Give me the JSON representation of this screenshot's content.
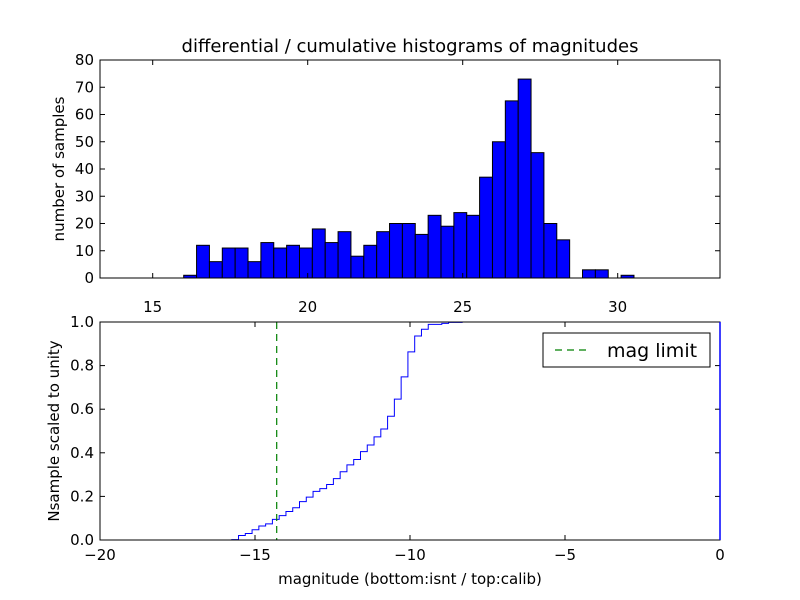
{
  "figure": {
    "title": "differential / cumulative histograms of magnitudes"
  },
  "chart_data": [
    {
      "type": "bar",
      "name": "differential-histogram",
      "title": "differential / cumulative histograms of magnitudes",
      "xlabel": "",
      "ylabel": "number of samples",
      "xlim": [
        13.3,
        33.3
      ],
      "ylim": [
        0,
        80
      ],
      "xticks": [
        15,
        20,
        25,
        30
      ],
      "xtick_labels": [
        "15",
        "20",
        "25",
        "30"
      ],
      "yticks": [
        0,
        10,
        20,
        30,
        40,
        50,
        60,
        70,
        80
      ],
      "ytick_labels": [
        "0",
        "10",
        "20",
        "30",
        "40",
        "50",
        "60",
        "70",
        "80"
      ],
      "xticks_position": "top-of-bottom",
      "bar_color": "#0000ff",
      "bin_start": 16.0,
      "bin_width": 0.415,
      "values": [
        1,
        12,
        6,
        11,
        11,
        6,
        13,
        11,
        12,
        11,
        18,
        13,
        17,
        8,
        12,
        17,
        20,
        20,
        16,
        23,
        19,
        24,
        23,
        37,
        50,
        65,
        73,
        46,
        20,
        14,
        0,
        3,
        3,
        0,
        1
      ]
    },
    {
      "type": "line",
      "name": "cumulative-histogram",
      "xlabel": "magnitude (bottom:isnt / top:calib)",
      "ylabel": "Nsample scaled to unity",
      "xlim": [
        -20,
        0
      ],
      "ylim": [
        0.0,
        1.0
      ],
      "xticks": [
        -20,
        -15,
        -10,
        -5,
        0
      ],
      "xtick_labels": [
        "−20",
        "−15",
        "−10",
        "−5",
        "0"
      ],
      "yticks": [
        0.0,
        0.2,
        0.4,
        0.6,
        0.8,
        1.0
      ],
      "ytick_labels": [
        "0.0",
        "0.2",
        "0.4",
        "0.6",
        "0.8",
        "1.0"
      ],
      "step_color": "#0000ff",
      "x_start": -15.75,
      "x_end": -8.1,
      "mag_limit": -14.3,
      "mag_limit_color": "#008000",
      "legend": {
        "label": "mag limit",
        "position": "top-right"
      }
    }
  ]
}
